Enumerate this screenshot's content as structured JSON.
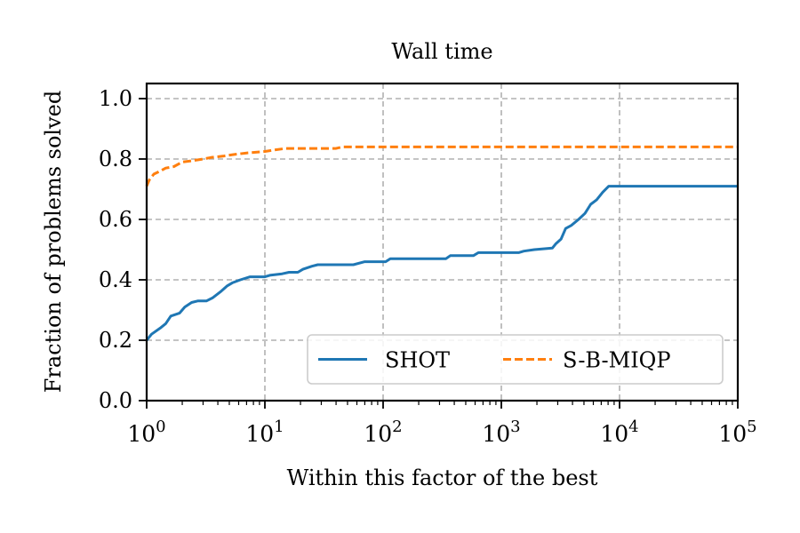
{
  "chart_data": {
    "type": "line",
    "title": "Wall time",
    "xlabel": "Within this factor of the best",
    "ylabel": "Fraction of problems solved",
    "xscale": "log",
    "xlim": [
      1,
      100000
    ],
    "ylim": [
      0,
      1.05
    ],
    "x_ticks": [
      {
        "value": 1,
        "base": "10",
        "exp": "0"
      },
      {
        "value": 10,
        "base": "10",
        "exp": "1"
      },
      {
        "value": 100,
        "base": "10",
        "exp": "2"
      },
      {
        "value": 1000,
        "base": "10",
        "exp": "3"
      },
      {
        "value": 10000,
        "base": "10",
        "exp": "4"
      },
      {
        "value": 100000,
        "base": "10",
        "exp": "5"
      }
    ],
    "y_ticks": [
      {
        "value": 0.0,
        "label": "0.0"
      },
      {
        "value": 0.2,
        "label": "0.2"
      },
      {
        "value": 0.4,
        "label": "0.4"
      },
      {
        "value": 0.6,
        "label": "0.6"
      },
      {
        "value": 0.8,
        "label": "0.8"
      },
      {
        "value": 1.0,
        "label": "1.0"
      }
    ],
    "grid": true,
    "legend_position": "lower-right",
    "series": [
      {
        "name": "SHOT",
        "color": "#1f77b4",
        "style": "solid",
        "points": [
          [
            1,
            0.2
          ],
          [
            1.1,
            0.22
          ],
          [
            1.3,
            0.24
          ],
          [
            1.45,
            0.255
          ],
          [
            1.6,
            0.28
          ],
          [
            1.9,
            0.29
          ],
          [
            2.1,
            0.31
          ],
          [
            2.4,
            0.325
          ],
          [
            2.7,
            0.33
          ],
          [
            3.2,
            0.33
          ],
          [
            3.6,
            0.34
          ],
          [
            4.2,
            0.36
          ],
          [
            4.8,
            0.38
          ],
          [
            5.3,
            0.39
          ],
          [
            6.2,
            0.4
          ],
          [
            7.5,
            0.41
          ],
          [
            10,
            0.41
          ],
          [
            11,
            0.415
          ],
          [
            14,
            0.42
          ],
          [
            16,
            0.425
          ],
          [
            19,
            0.425
          ],
          [
            21,
            0.435
          ],
          [
            25,
            0.445
          ],
          [
            28,
            0.45
          ],
          [
            56,
            0.45
          ],
          [
            70,
            0.46
          ],
          [
            105,
            0.46
          ],
          [
            115,
            0.47
          ],
          [
            340,
            0.47
          ],
          [
            370,
            0.48
          ],
          [
            580,
            0.48
          ],
          [
            640,
            0.49
          ],
          [
            1400,
            0.49
          ],
          [
            1550,
            0.495
          ],
          [
            1900,
            0.5
          ],
          [
            2700,
            0.505
          ],
          [
            2900,
            0.52
          ],
          [
            3200,
            0.535
          ],
          [
            3500,
            0.57
          ],
          [
            3900,
            0.58
          ],
          [
            4500,
            0.6
          ],
          [
            5100,
            0.62
          ],
          [
            5700,
            0.65
          ],
          [
            6400,
            0.665
          ],
          [
            7200,
            0.69
          ],
          [
            8100,
            0.71
          ],
          [
            100000,
            0.71
          ]
        ]
      },
      {
        "name": "S-B-MIQP",
        "color": "#ff7f0e",
        "style": "dashed",
        "points": [
          [
            1,
            0.71
          ],
          [
            1.05,
            0.73
          ],
          [
            1.15,
            0.75
          ],
          [
            1.3,
            0.76
          ],
          [
            1.45,
            0.77
          ],
          [
            1.7,
            0.775
          ],
          [
            2.0,
            0.79
          ],
          [
            2.5,
            0.795
          ],
          [
            3.0,
            0.8
          ],
          [
            3.5,
            0.805
          ],
          [
            4.5,
            0.81
          ],
          [
            5.5,
            0.815
          ],
          [
            7.0,
            0.82
          ],
          [
            10,
            0.825
          ],
          [
            12,
            0.83
          ],
          [
            15,
            0.835
          ],
          [
            40,
            0.835
          ],
          [
            45,
            0.84
          ],
          [
            100000,
            0.84
          ]
        ]
      }
    ]
  }
}
